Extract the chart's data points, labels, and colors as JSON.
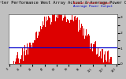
{
  "title": "Solar PV/Inverter Performance West Array Actual & Average Power Output",
  "title_fontsize": 3.8,
  "bg_color": "#c0c0c0",
  "plot_bg_color": "#ffffff",
  "bar_color": "#dd0000",
  "avg_line_color": "#0000cc",
  "grid_color": "#dddddd",
  "text_color": "#000000",
  "ylim": [
    0,
    3.2
  ],
  "num_points": 144,
  "avg_value": 1.05,
  "legend_actual_color": "#dd0000",
  "legend_avg_color": "#0000cc",
  "legend_actual": "Actual Power Output",
  "legend_avg": "Average Power Output"
}
